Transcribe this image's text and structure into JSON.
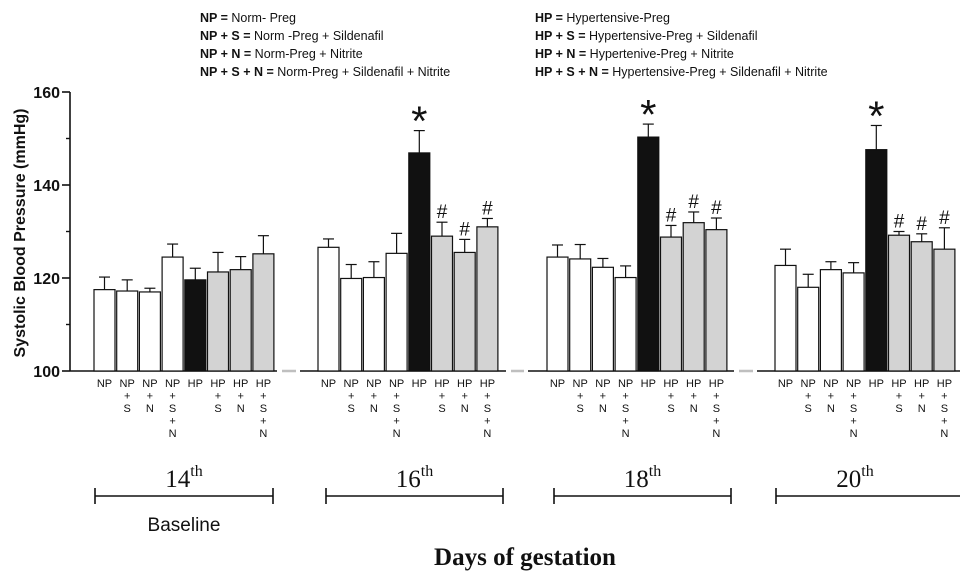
{
  "chart_data": {
    "type": "bar",
    "ylabel": "Systolic Blood Pressure (mmHg)",
    "xlabel": "Days of gestation",
    "ylim": [
      100,
      160
    ],
    "yticks": [
      100,
      120,
      140,
      160
    ],
    "legend": [
      {
        "abbr": "NP",
        "eq": " = ",
        "text": "Norm- Preg"
      },
      {
        "abbr": "NP + S",
        "eq": " = ",
        "text": "Norm -Preg + Sildenafil"
      },
      {
        "abbr": "NP + N",
        "eq": " = ",
        "text": "Norm-Preg + Nitrite"
      },
      {
        "abbr": "NP + S + N",
        "eq": " = ",
        "text": "Norm-Preg + Sildenafil + Nitrite"
      },
      {
        "abbr": "HP",
        "eq": " = ",
        "text": "Hypertensive-Preg"
      },
      {
        "abbr": "HP + S",
        "eq": " = ",
        "text": "Hypertensive-Preg + Sildenafil"
      },
      {
        "abbr": "HP + N",
        "eq": " = ",
        "text": "Hypertenive-Preg + Nitrite"
      },
      {
        "abbr": "HP + S + N",
        "eq": " = ",
        "text": "Hypertensive-Preg + Sildenafil + Nitrite"
      }
    ],
    "category_labels": [
      [
        "NP"
      ],
      [
        "NP",
        "+",
        "S"
      ],
      [
        "NP",
        "+",
        "N"
      ],
      [
        "NP",
        "+",
        "S",
        "+",
        "N"
      ],
      [
        "HP"
      ],
      [
        "HP",
        "+",
        "S"
      ],
      [
        "HP",
        "+",
        "N"
      ],
      [
        "HP",
        "+",
        "S",
        "+",
        "N"
      ]
    ],
    "groups": [
      {
        "day_base": "14",
        "day_sup": "th",
        "note": "Baseline",
        "values": [
          117.5,
          117.2,
          117.0,
          124.5,
          119.6,
          121.3,
          121.8,
          125.2
        ],
        "errors": [
          2.7,
          2.4,
          0.8,
          2.8,
          2.5,
          4.2,
          2.8,
          3.9
        ],
        "markers": [
          "",
          "",
          "",
          "",
          "",
          "",
          "",
          ""
        ]
      },
      {
        "day_base": "16",
        "day_sup": "th",
        "note": "",
        "values": [
          126.6,
          119.9,
          120.1,
          125.3,
          146.9,
          129.0,
          125.5,
          131.0
        ],
        "errors": [
          1.8,
          3.0,
          3.4,
          4.3,
          4.8,
          3.0,
          2.8,
          1.8
        ],
        "markers": [
          "",
          "",
          "",
          "",
          "*",
          "#",
          "#",
          "#"
        ]
      },
      {
        "day_base": "18",
        "day_sup": "th",
        "note": "",
        "values": [
          124.5,
          124.1,
          122.3,
          120.1,
          150.3,
          128.8,
          131.9,
          130.4
        ],
        "errors": [
          2.6,
          3.1,
          1.9,
          2.5,
          2.8,
          2.5,
          2.3,
          2.5
        ],
        "markers": [
          "",
          "",
          "",
          "",
          "*",
          "#",
          "#",
          "#"
        ]
      },
      {
        "day_base": "20",
        "day_sup": "th",
        "note": "",
        "values": [
          122.7,
          118.0,
          121.8,
          121.1,
          147.6,
          129.2,
          127.8,
          126.2
        ],
        "errors": [
          3.5,
          2.8,
          1.7,
          2.2,
          5.2,
          0.8,
          1.7,
          4.6
        ],
        "markers": [
          "",
          "",
          "",
          "",
          "*",
          "#",
          "#",
          "#"
        ]
      }
    ],
    "colors": {
      "NP": "#ffffff",
      "HP": "#111111",
      "HP_treated": "#d3d3d3",
      "stroke": "#111111",
      "axis_break": "#bfbfbf"
    }
  }
}
